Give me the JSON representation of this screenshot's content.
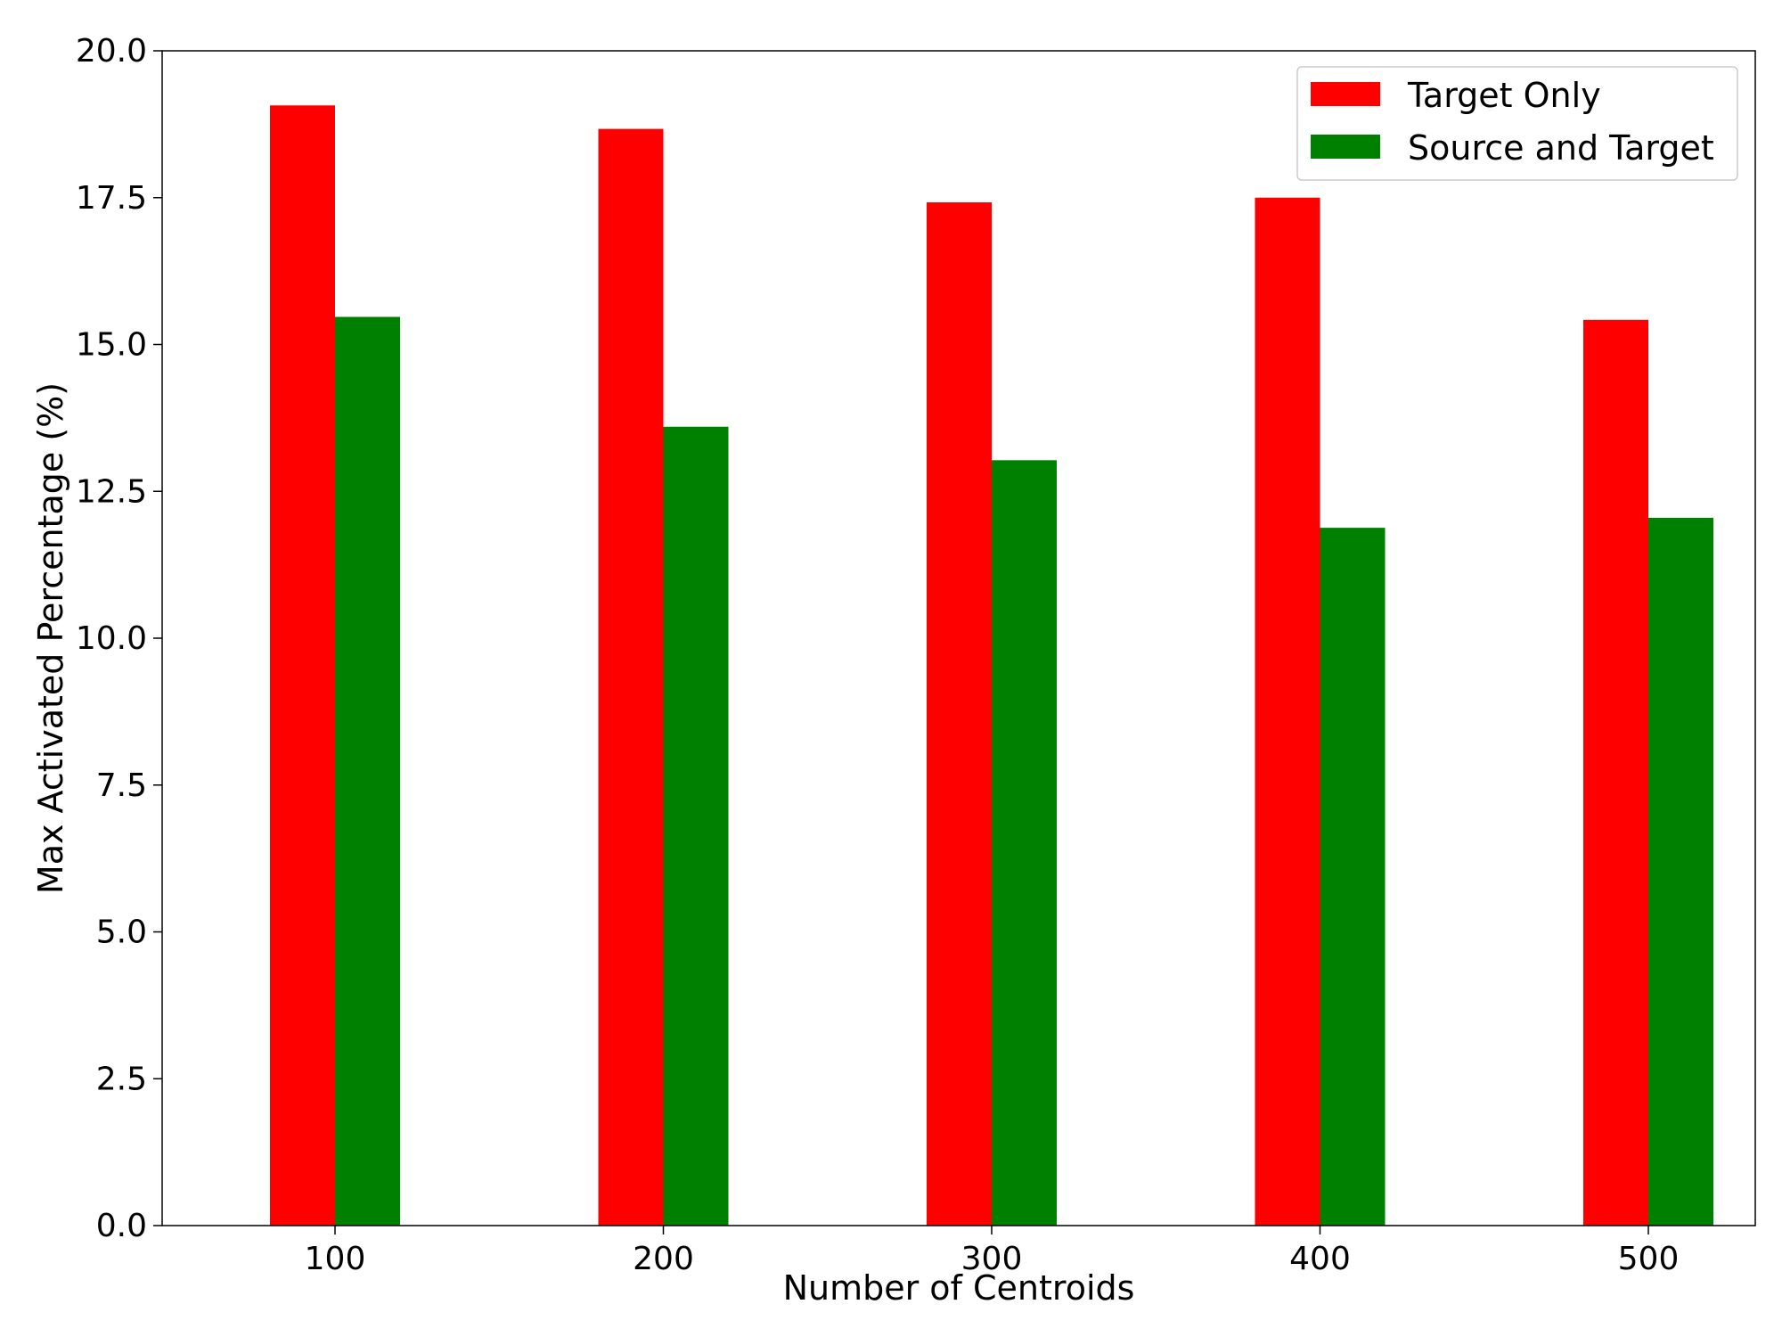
{
  "chart_data": {
    "type": "bar",
    "title": "",
    "xlabel": "Number of Centroids",
    "ylabel": "Max Activated Percentage (%)",
    "categories": [
      "100",
      "200",
      "300",
      "400",
      "500"
    ],
    "series": [
      {
        "name": "Target Only",
        "color": "#ff0000",
        "values": [
          19.07,
          18.67,
          17.42,
          17.5,
          15.42
        ]
      },
      {
        "name": "Source and Target",
        "color": "#008000",
        "values": [
          15.47,
          13.6,
          13.03,
          11.88,
          12.05
        ]
      }
    ],
    "ylim": [
      0,
      20
    ],
    "yticks": [
      "0.0",
      "2.5",
      "5.0",
      "7.5",
      "10.0",
      "12.5",
      "15.0",
      "17.5",
      "20.0"
    ],
    "grid": false,
    "legend_position": "top-right"
  }
}
